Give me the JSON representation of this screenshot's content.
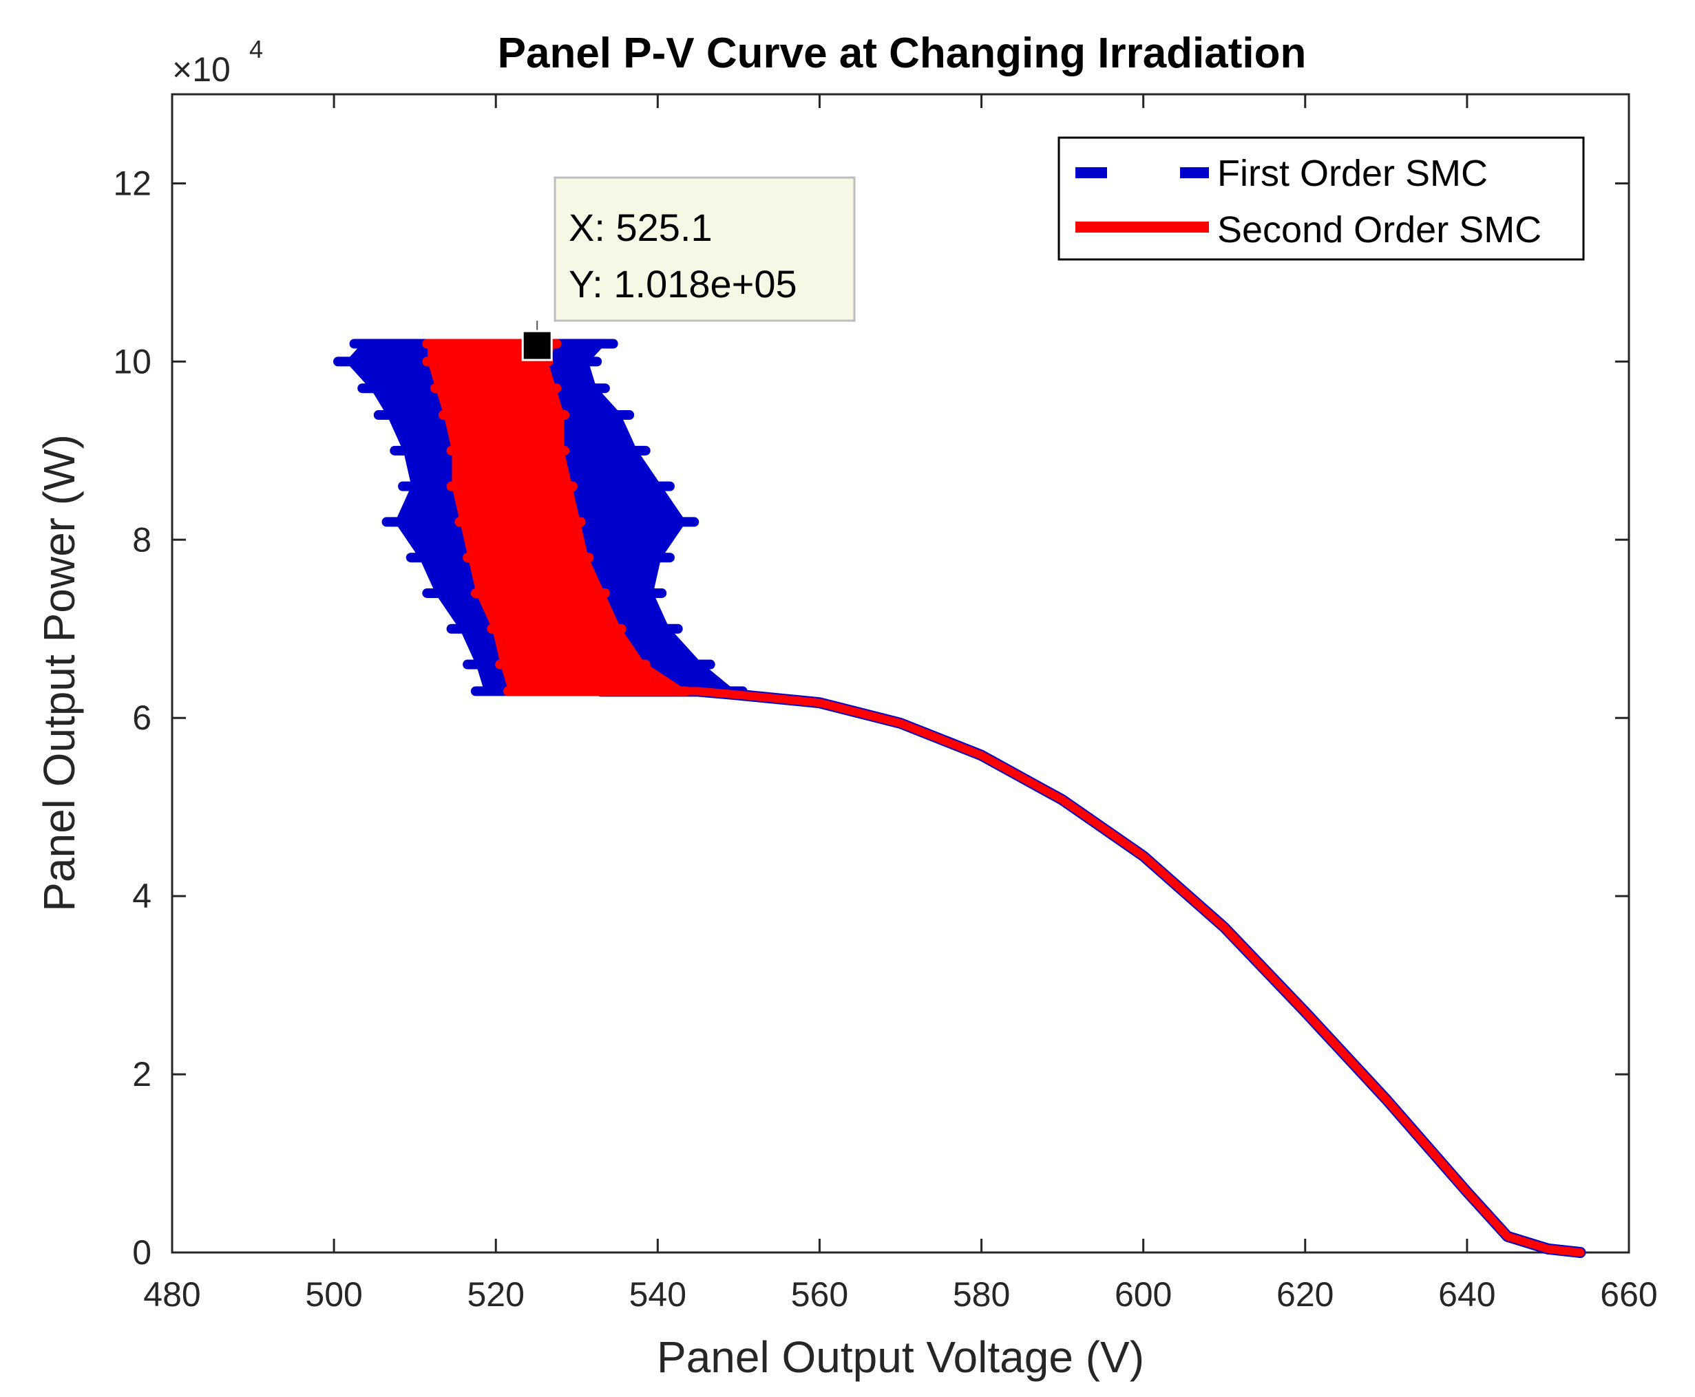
{
  "chart_data": {
    "type": "line",
    "title": "Panel P-V Curve at Changing Irradiation",
    "xlabel": "Panel Output Voltage (V)",
    "ylabel": "Panel Output Power (W)",
    "y_exponent_label": "×10",
    "y_exponent_power": "4",
    "xlim": [
      480,
      660
    ],
    "ylim": [
      0,
      130000
    ],
    "x_ticks": [
      480,
      500,
      520,
      540,
      560,
      580,
      600,
      620,
      640,
      660
    ],
    "x_tick_labels": [
      "480",
      "500",
      "520",
      "540",
      "560",
      "580",
      "600",
      "620",
      "640",
      "660"
    ],
    "y_ticks": [
      0,
      20000,
      40000,
      60000,
      80000,
      100000,
      120000
    ],
    "y_tick_labels": [
      "0",
      "2",
      "4",
      "6",
      "8",
      "10",
      "12"
    ],
    "grid": false,
    "legend_position": "top-right",
    "series": [
      {
        "name": "First Order SMC",
        "color": "#0000cc",
        "style": "dashed",
        "oscillation_band": {
          "y": [
            63000,
            66000,
            70000,
            74000,
            78000,
            82000,
            86000,
            90000,
            94000,
            97000,
            100000,
            102000
          ],
          "x_min": [
            519,
            518,
            516,
            513,
            511,
            508,
            510,
            509,
            507,
            505,
            502,
            504
          ],
          "x_max": [
            549,
            545,
            541,
            539,
            540,
            543,
            540,
            537,
            535,
            532,
            531,
            533
          ]
        },
        "x": [
          533,
          545,
          550,
          560,
          570,
          580,
          590,
          600,
          610,
          620,
          630,
          640,
          645,
          650,
          654
        ],
        "y": [
          63000,
          63000,
          62600,
          61700,
          59400,
          55800,
          50800,
          44500,
          36500,
          27000,
          17200,
          6800,
          1800,
          400,
          0
        ]
      },
      {
        "name": "Second Order SMC",
        "color": "#ff0000",
        "style": "solid",
        "oscillation_band": {
          "y": [
            63000,
            66000,
            70000,
            74000,
            78000,
            82000,
            86000,
            90000,
            94000,
            97000,
            100000,
            102000
          ],
          "x_min": [
            522,
            521,
            520,
            518,
            517,
            516,
            515,
            515,
            514,
            513,
            512,
            512
          ],
          "x_max": [
            543,
            538,
            535,
            533,
            531,
            530,
            529,
            528,
            528,
            527,
            526,
            527
          ]
        },
        "x": [
          533,
          545,
          550,
          560,
          570,
          580,
          590,
          600,
          610,
          620,
          630,
          640,
          645,
          650,
          654
        ],
        "y": [
          63000,
          63000,
          62600,
          61700,
          59400,
          55800,
          50800,
          44500,
          36500,
          27000,
          17200,
          6800,
          1800,
          400,
          0
        ]
      }
    ],
    "datatip": {
      "x": 525.1,
      "y": 101800,
      "x_text": "X: 525.1",
      "y_text": "Y: 1.018e+05"
    }
  }
}
